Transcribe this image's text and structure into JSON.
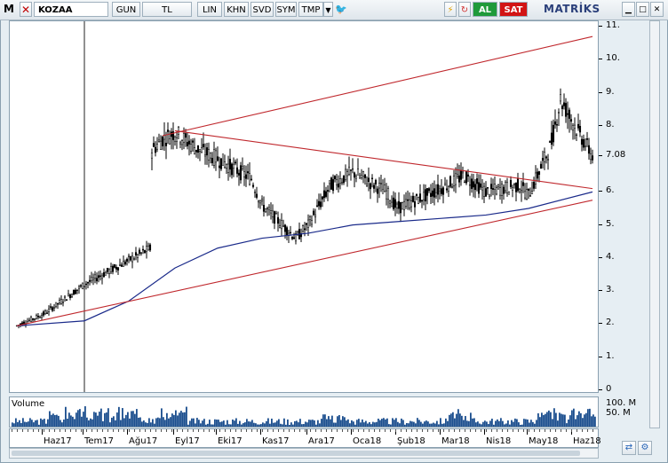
{
  "toolbar": {
    "app_letter": "M",
    "symbol": "KOZAA",
    "buttons": [
      "GUN",
      "TL",
      "LIN",
      "KHN",
      "SVD",
      "SYM",
      "TMP"
    ],
    "buy_label": "AL",
    "sell_label": "SAT",
    "brand": "MATRİKS"
  },
  "volume_label": "Volume",
  "chart_data": {
    "type": "candlestick",
    "title": "",
    "xlabel": "",
    "ylabel": "",
    "ylim": [
      0,
      11
    ],
    "y_ticks": [
      "0",
      "1.",
      "2.",
      "3.",
      "4.",
      "5.",
      "6.",
      "7.08",
      "8.",
      "9.",
      "10.",
      "11."
    ],
    "last_price": 7.08,
    "x_tick_labels": [
      "Haz17",
      "Tem17",
      "Ağu17",
      "Eyl17",
      "Eki17",
      "Kas17",
      "Ara17",
      "Oca18",
      "Şub18",
      "Mar18",
      "Nis18",
      "May18",
      "Haz18"
    ],
    "price_path": [
      [
        "Haz17-start",
        1.95
      ],
      [
        "Haz17",
        2.3
      ],
      [
        "Tem17",
        3.2
      ],
      [
        "Ağu17-mid",
        4.3
      ],
      [
        "Ağu17",
        6.5
      ],
      [
        "Ağu17-late",
        7.6
      ],
      [
        "Eyl17",
        7.8
      ],
      [
        "Eyl17-mid",
        7.3
      ],
      [
        "Eki17",
        7.0
      ],
      [
        "Eki17-late",
        6.4
      ],
      [
        "Kas17",
        5.6
      ],
      [
        "Kas17-late",
        4.6
      ],
      [
        "Ara17",
        5.0
      ],
      [
        "Ara17-mid",
        6.2
      ],
      [
        "Oca18",
        6.6
      ],
      [
        "Oca18-late",
        6.0
      ],
      [
        "Şub18",
        5.5
      ],
      [
        "Mar18",
        6.1
      ],
      [
        "Mar18-mid",
        6.5
      ],
      [
        "Nis18",
        6.0
      ],
      [
        "Nis18-late",
        6.2
      ],
      [
        "May18",
        5.9
      ],
      [
        "May18-mid",
        7.4
      ],
      [
        "Haz18-early",
        8.8
      ],
      [
        "Haz18",
        8.1
      ],
      [
        "Haz18-end",
        7.08
      ]
    ],
    "moving_average": [
      [
        "Haz17-start",
        1.95
      ],
      [
        "Tem17",
        2.1
      ],
      [
        "Ağu17",
        2.7
      ],
      [
        "Eyl17",
        3.7
      ],
      [
        "Eki17",
        4.3
      ],
      [
        "Kas17",
        4.6
      ],
      [
        "Ara17",
        4.75
      ],
      [
        "Oca18",
        5.0
      ],
      [
        "Şub18",
        5.1
      ],
      [
        "Mar18",
        5.2
      ],
      [
        "Nis18",
        5.3
      ],
      [
        "May18",
        5.5
      ],
      [
        "Haz18-end",
        6.0
      ]
    ],
    "trendlines": [
      {
        "from": [
          "Haz17-start",
          1.95
        ],
        "to": [
          "Haz18-end",
          5.75
        ],
        "color": "#c0282d"
      },
      {
        "from": [
          "Ağu17-late",
          7.7
        ],
        "to": [
          "Haz18-end",
          10.7
        ],
        "color": "#c0282d"
      },
      {
        "from": [
          "Eyl17",
          7.85
        ],
        "to": [
          "Haz18-end",
          6.1
        ],
        "color": "#c0282d"
      }
    ],
    "volume": {
      "y_ticks": [
        "100. M",
        "50. M"
      ],
      "color": "#1b4e8e"
    },
    "colors": {
      "candles": "#000000",
      "moving_average": "#1a2a8a",
      "trend": "#c0282d"
    }
  }
}
